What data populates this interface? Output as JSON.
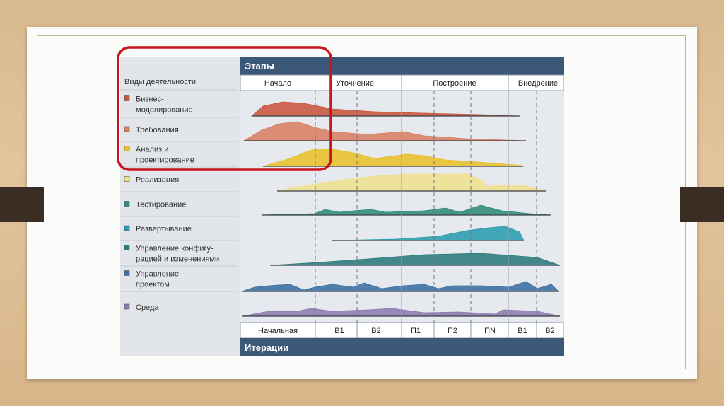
{
  "header": {
    "phases_title": "Этапы",
    "iterations_title": "Итерации"
  },
  "activities_title": "Виды деятельности",
  "activities": [
    {
      "lines": [
        "Бизнес-",
        "моделирование"
      ],
      "color": "#c8553d"
    },
    {
      "lines": [
        "Требования"
      ],
      "color": "#d97e63"
    },
    {
      "lines": [
        "Анализ и",
        "проектирование"
      ],
      "color": "#e8c02a"
    },
    {
      "lines": [
        "Реализация"
      ],
      "color": "#efe08e"
    },
    {
      "lines": [
        "Тестирование"
      ],
      "color": "#2e8c7a"
    },
    {
      "lines": [
        "Развертывание"
      ],
      "color": "#2a9cad"
    },
    {
      "lines": [
        "Управление конфигу-",
        "рацией и изменениями"
      ],
      "color": "#2b7a7d"
    },
    {
      "lines": [
        "Управление",
        "проектом"
      ],
      "color": "#3a6fa0"
    },
    {
      "lines": [
        "Среда"
      ],
      "color": "#8c7ab0"
    }
  ],
  "phases": [
    "Начало",
    "Уточнение",
    "Построение",
    "Внедрение"
  ],
  "iterations": [
    "Начальная",
    "В1",
    "В2",
    "П1",
    "П2",
    "ПN",
    "В1",
    "В2"
  ],
  "colors": {
    "header_bg": "#3b5878",
    "highlight": "#c8161d",
    "grid_bg": "#e5e8ec"
  }
}
